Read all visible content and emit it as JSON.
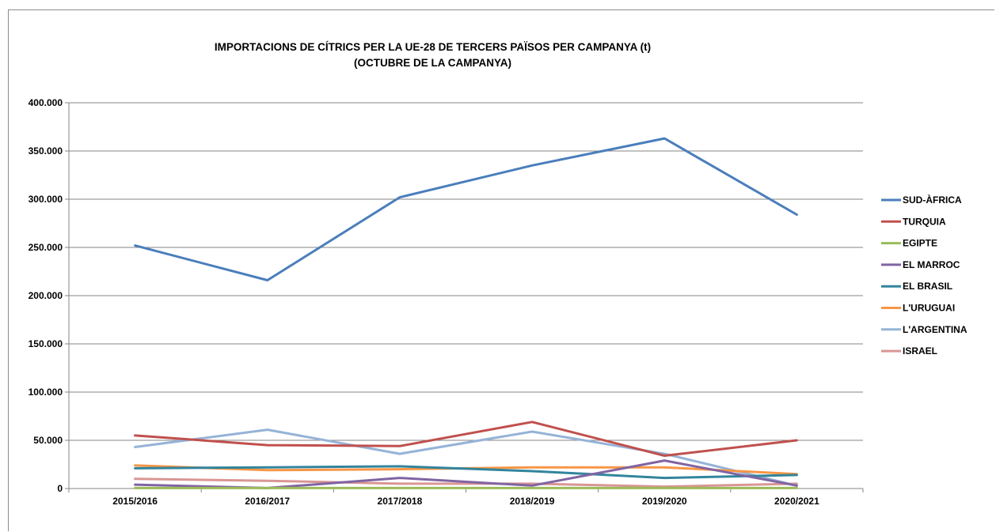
{
  "chart_data": {
    "type": "line",
    "title": "IMPORTACIONS DE CÍTRICS PER LA UE-28 DE TERCERS PAÏSOS PER CAMPANYA  (t)",
    "subtitle": "(OCTUBRE  DE LA CAMPANYA)",
    "categories": [
      "2015/2016",
      "2016/2017",
      "2017/2018",
      "2018/2019",
      "2019/2020",
      "2020/2021"
    ],
    "ylim": [
      0,
      400000
    ],
    "yticks": [
      0,
      50000,
      100000,
      150000,
      200000,
      250000,
      300000,
      350000,
      400000
    ],
    "ytick_labels": [
      "0",
      "50.000",
      "100.000",
      "150.000",
      "200.000",
      "250.000",
      "300.000",
      "350.000",
      "400.000"
    ],
    "grid": true,
    "legend_position": "right",
    "series": [
      {
        "name": "SUD-ÀFRICA",
        "color": "#4a7ebb",
        "values": [
          252000,
          216000,
          302000,
          335000,
          363000,
          284000
        ]
      },
      {
        "name": "TURQUIA",
        "color": "#c0504d",
        "values": [
          55000,
          45000,
          44000,
          69000,
          34000,
          50000
        ]
      },
      {
        "name": "EGIPTE",
        "color": "#9bbb59",
        "values": [
          500,
          500,
          500,
          500,
          500,
          500
        ]
      },
      {
        "name": "EL MARROC",
        "color": "#8064a2",
        "values": [
          4000,
          500,
          11000,
          3000,
          29000,
          3000
        ]
      },
      {
        "name": "EL BRASIL",
        "color": "#31859c",
        "values": [
          21000,
          22000,
          23000,
          18000,
          11000,
          14000
        ]
      },
      {
        "name": "L'URUGUAI",
        "color": "#f79646",
        "values": [
          24000,
          19000,
          20000,
          22000,
          22000,
          15000
        ]
      },
      {
        "name": "L'ARGENTINA",
        "color": "#95b3d7",
        "values": [
          43000,
          61000,
          36000,
          59000,
          36000,
          3000
        ]
      },
      {
        "name": "ISRAEL",
        "color": "#d99694",
        "values": [
          10000,
          8000,
          5000,
          5000,
          2000,
          5000
        ]
      }
    ]
  }
}
